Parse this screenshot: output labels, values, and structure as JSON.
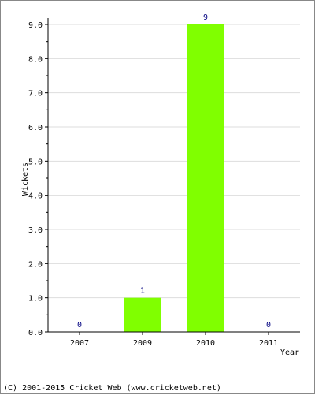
{
  "chart_data": {
    "type": "bar",
    "categories": [
      "2007",
      "2009",
      "2010",
      "2011"
    ],
    "values": [
      0,
      1,
      9,
      0
    ],
    "data_labels": [
      "0",
      "1",
      "9",
      "0"
    ],
    "xlabel": "Year",
    "ylabel": "Wickets",
    "ylim": [
      0,
      9
    ],
    "yticks": [
      "0.0",
      "1.0",
      "2.0",
      "3.0",
      "4.0",
      "5.0",
      "6.0",
      "7.0",
      "8.0",
      "9.0"
    ],
    "grid": true,
    "bar_color": "#80ff00",
    "label_color": "#000080"
  },
  "footer": {
    "copyright": "(C) 2001-2015 Cricket Web (www.cricketweb.net)"
  }
}
